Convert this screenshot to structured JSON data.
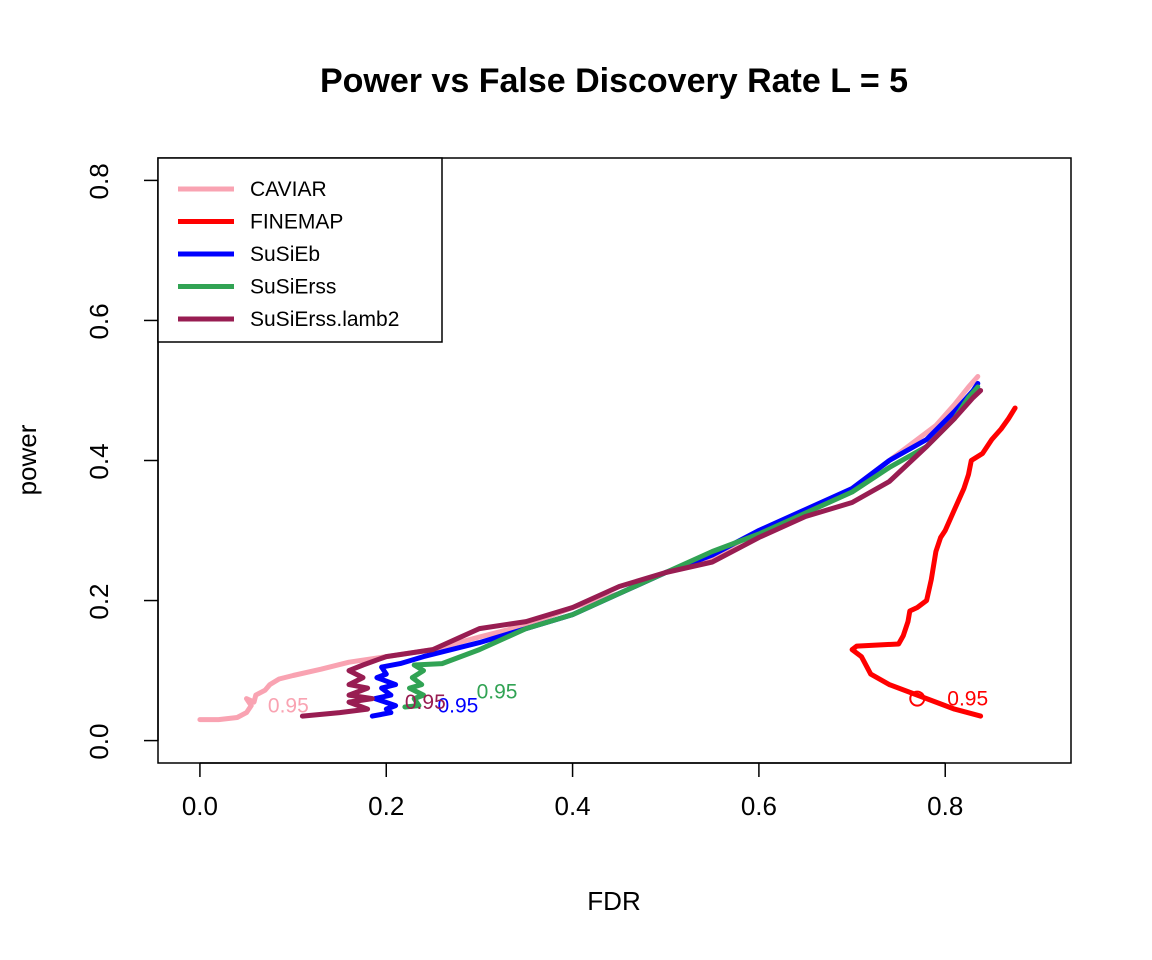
{
  "chart_data": {
    "type": "line",
    "title": "Power vs False Discovery Rate L = 5",
    "xlabel": "FDR",
    "ylabel": "power",
    "xlim": [
      -0.045,
      0.935
    ],
    "ylim": [
      -0.032,
      0.832
    ],
    "x_ticks": [
      {
        "value": 0.0,
        "label": "0.0"
      },
      {
        "value": 0.2,
        "label": "0.2"
      },
      {
        "value": 0.4,
        "label": "0.4"
      },
      {
        "value": 0.6,
        "label": "0.6"
      },
      {
        "value": 0.8,
        "label": "0.8"
      }
    ],
    "y_ticks": [
      {
        "value": 0.0,
        "label": "0.0"
      },
      {
        "value": 0.2,
        "label": "0.2"
      },
      {
        "value": 0.4,
        "label": "0.4"
      },
      {
        "value": 0.6,
        "label": "0.6"
      },
      {
        "value": 0.8,
        "label": "0.8"
      }
    ],
    "legend_position": "top-left",
    "series": [
      {
        "name": "CAVIAR",
        "color": "#f9a3b2",
        "points": [
          [
            0.0,
            0.03
          ],
          [
            0.02,
            0.03
          ],
          [
            0.04,
            0.033
          ],
          [
            0.05,
            0.04
          ],
          [
            0.055,
            0.05
          ],
          [
            0.05,
            0.06
          ],
          [
            0.058,
            0.055
          ],
          [
            0.06,
            0.065
          ],
          [
            0.07,
            0.072
          ],
          [
            0.075,
            0.08
          ],
          [
            0.085,
            0.088
          ],
          [
            0.1,
            0.093
          ],
          [
            0.13,
            0.102
          ],
          [
            0.16,
            0.112
          ],
          [
            0.2,
            0.12
          ],
          [
            0.25,
            0.13
          ],
          [
            0.3,
            0.148
          ],
          [
            0.35,
            0.165
          ],
          [
            0.4,
            0.19
          ],
          [
            0.45,
            0.21
          ],
          [
            0.5,
            0.24
          ],
          [
            0.55,
            0.262
          ],
          [
            0.6,
            0.3
          ],
          [
            0.65,
            0.325
          ],
          [
            0.7,
            0.36
          ],
          [
            0.73,
            0.39
          ],
          [
            0.76,
            0.42
          ],
          [
            0.79,
            0.45
          ],
          [
            0.81,
            0.48
          ],
          [
            0.825,
            0.505
          ],
          [
            0.835,
            0.52
          ]
        ],
        "annotation": {
          "x": 0.073,
          "y": 0.05,
          "label": "0.95"
        }
      },
      {
        "name": "FINEMAP",
        "color": "#ff0000",
        "points": [
          [
            0.838,
            0.035
          ],
          [
            0.81,
            0.045
          ],
          [
            0.78,
            0.06
          ],
          [
            0.74,
            0.08
          ],
          [
            0.72,
            0.095
          ],
          [
            0.71,
            0.12
          ],
          [
            0.7,
            0.13
          ],
          [
            0.705,
            0.135
          ],
          [
            0.75,
            0.138
          ],
          [
            0.755,
            0.15
          ],
          [
            0.76,
            0.17
          ],
          [
            0.762,
            0.185
          ],
          [
            0.77,
            0.19
          ],
          [
            0.78,
            0.2
          ],
          [
            0.785,
            0.23
          ],
          [
            0.79,
            0.27
          ],
          [
            0.795,
            0.29
          ],
          [
            0.8,
            0.3
          ],
          [
            0.81,
            0.33
          ],
          [
            0.82,
            0.36
          ],
          [
            0.825,
            0.38
          ],
          [
            0.828,
            0.4
          ],
          [
            0.84,
            0.41
          ],
          [
            0.85,
            0.43
          ],
          [
            0.86,
            0.445
          ],
          [
            0.868,
            0.46
          ],
          [
            0.875,
            0.475
          ]
        ],
        "annotation": {
          "x": 0.77,
          "y": 0.06,
          "label": "0.95",
          "marker": true
        }
      },
      {
        "name": "SuSiEb",
        "color": "#0000ff",
        "points": [
          [
            0.185,
            0.035
          ],
          [
            0.205,
            0.04
          ],
          [
            0.2,
            0.045
          ],
          [
            0.21,
            0.05
          ],
          [
            0.188,
            0.06
          ],
          [
            0.205,
            0.065
          ],
          [
            0.195,
            0.075
          ],
          [
            0.21,
            0.08
          ],
          [
            0.19,
            0.09
          ],
          [
            0.2,
            0.095
          ],
          [
            0.195,
            0.105
          ],
          [
            0.215,
            0.11
          ],
          [
            0.24,
            0.12
          ],
          [
            0.3,
            0.14
          ],
          [
            0.35,
            0.16
          ],
          [
            0.4,
            0.18
          ],
          [
            0.45,
            0.21
          ],
          [
            0.5,
            0.24
          ],
          [
            0.55,
            0.265
          ],
          [
            0.6,
            0.3
          ],
          [
            0.65,
            0.33
          ],
          [
            0.7,
            0.36
          ],
          [
            0.74,
            0.4
          ],
          [
            0.78,
            0.43
          ],
          [
            0.81,
            0.47
          ],
          [
            0.83,
            0.5
          ],
          [
            0.835,
            0.51
          ]
        ],
        "annotation": {
          "x": 0.255,
          "y": 0.05,
          "label": "0.95"
        }
      },
      {
        "name": "SuSiErss",
        "color": "#31a354",
        "points": [
          [
            0.22,
            0.048
          ],
          [
            0.235,
            0.05
          ],
          [
            0.23,
            0.06
          ],
          [
            0.24,
            0.065
          ],
          [
            0.225,
            0.075
          ],
          [
            0.238,
            0.08
          ],
          [
            0.228,
            0.09
          ],
          [
            0.24,
            0.1
          ],
          [
            0.23,
            0.108
          ],
          [
            0.26,
            0.11
          ],
          [
            0.3,
            0.13
          ],
          [
            0.35,
            0.16
          ],
          [
            0.4,
            0.18
          ],
          [
            0.45,
            0.21
          ],
          [
            0.5,
            0.24
          ],
          [
            0.55,
            0.27
          ],
          [
            0.6,
            0.295
          ],
          [
            0.65,
            0.325
          ],
          [
            0.7,
            0.355
          ],
          [
            0.74,
            0.39
          ],
          [
            0.78,
            0.42
          ],
          [
            0.81,
            0.46
          ],
          [
            0.825,
            0.49
          ],
          [
            0.835,
            0.505
          ]
        ],
        "annotation": {
          "x": 0.297,
          "y": 0.07,
          "label": "0.95"
        }
      },
      {
        "name": "SuSiErss.lamb2",
        "color": "#981d52",
        "points": [
          [
            0.11,
            0.035
          ],
          [
            0.15,
            0.04
          ],
          [
            0.18,
            0.045
          ],
          [
            0.16,
            0.055
          ],
          [
            0.185,
            0.06
          ],
          [
            0.16,
            0.065
          ],
          [
            0.18,
            0.075
          ],
          [
            0.16,
            0.08
          ],
          [
            0.175,
            0.09
          ],
          [
            0.16,
            0.1
          ],
          [
            0.175,
            0.108
          ],
          [
            0.2,
            0.12
          ],
          [
            0.25,
            0.13
          ],
          [
            0.3,
            0.16
          ],
          [
            0.35,
            0.17
          ],
          [
            0.4,
            0.19
          ],
          [
            0.45,
            0.22
          ],
          [
            0.5,
            0.24
          ],
          [
            0.55,
            0.255
          ],
          [
            0.6,
            0.29
          ],
          [
            0.65,
            0.32
          ],
          [
            0.7,
            0.34
          ],
          [
            0.74,
            0.37
          ],
          [
            0.78,
            0.42
          ],
          [
            0.81,
            0.46
          ],
          [
            0.83,
            0.49
          ],
          [
            0.838,
            0.5
          ]
        ],
        "annotation": {
          "x": 0.22,
          "y": 0.055,
          "label": "0.95"
        }
      }
    ]
  }
}
